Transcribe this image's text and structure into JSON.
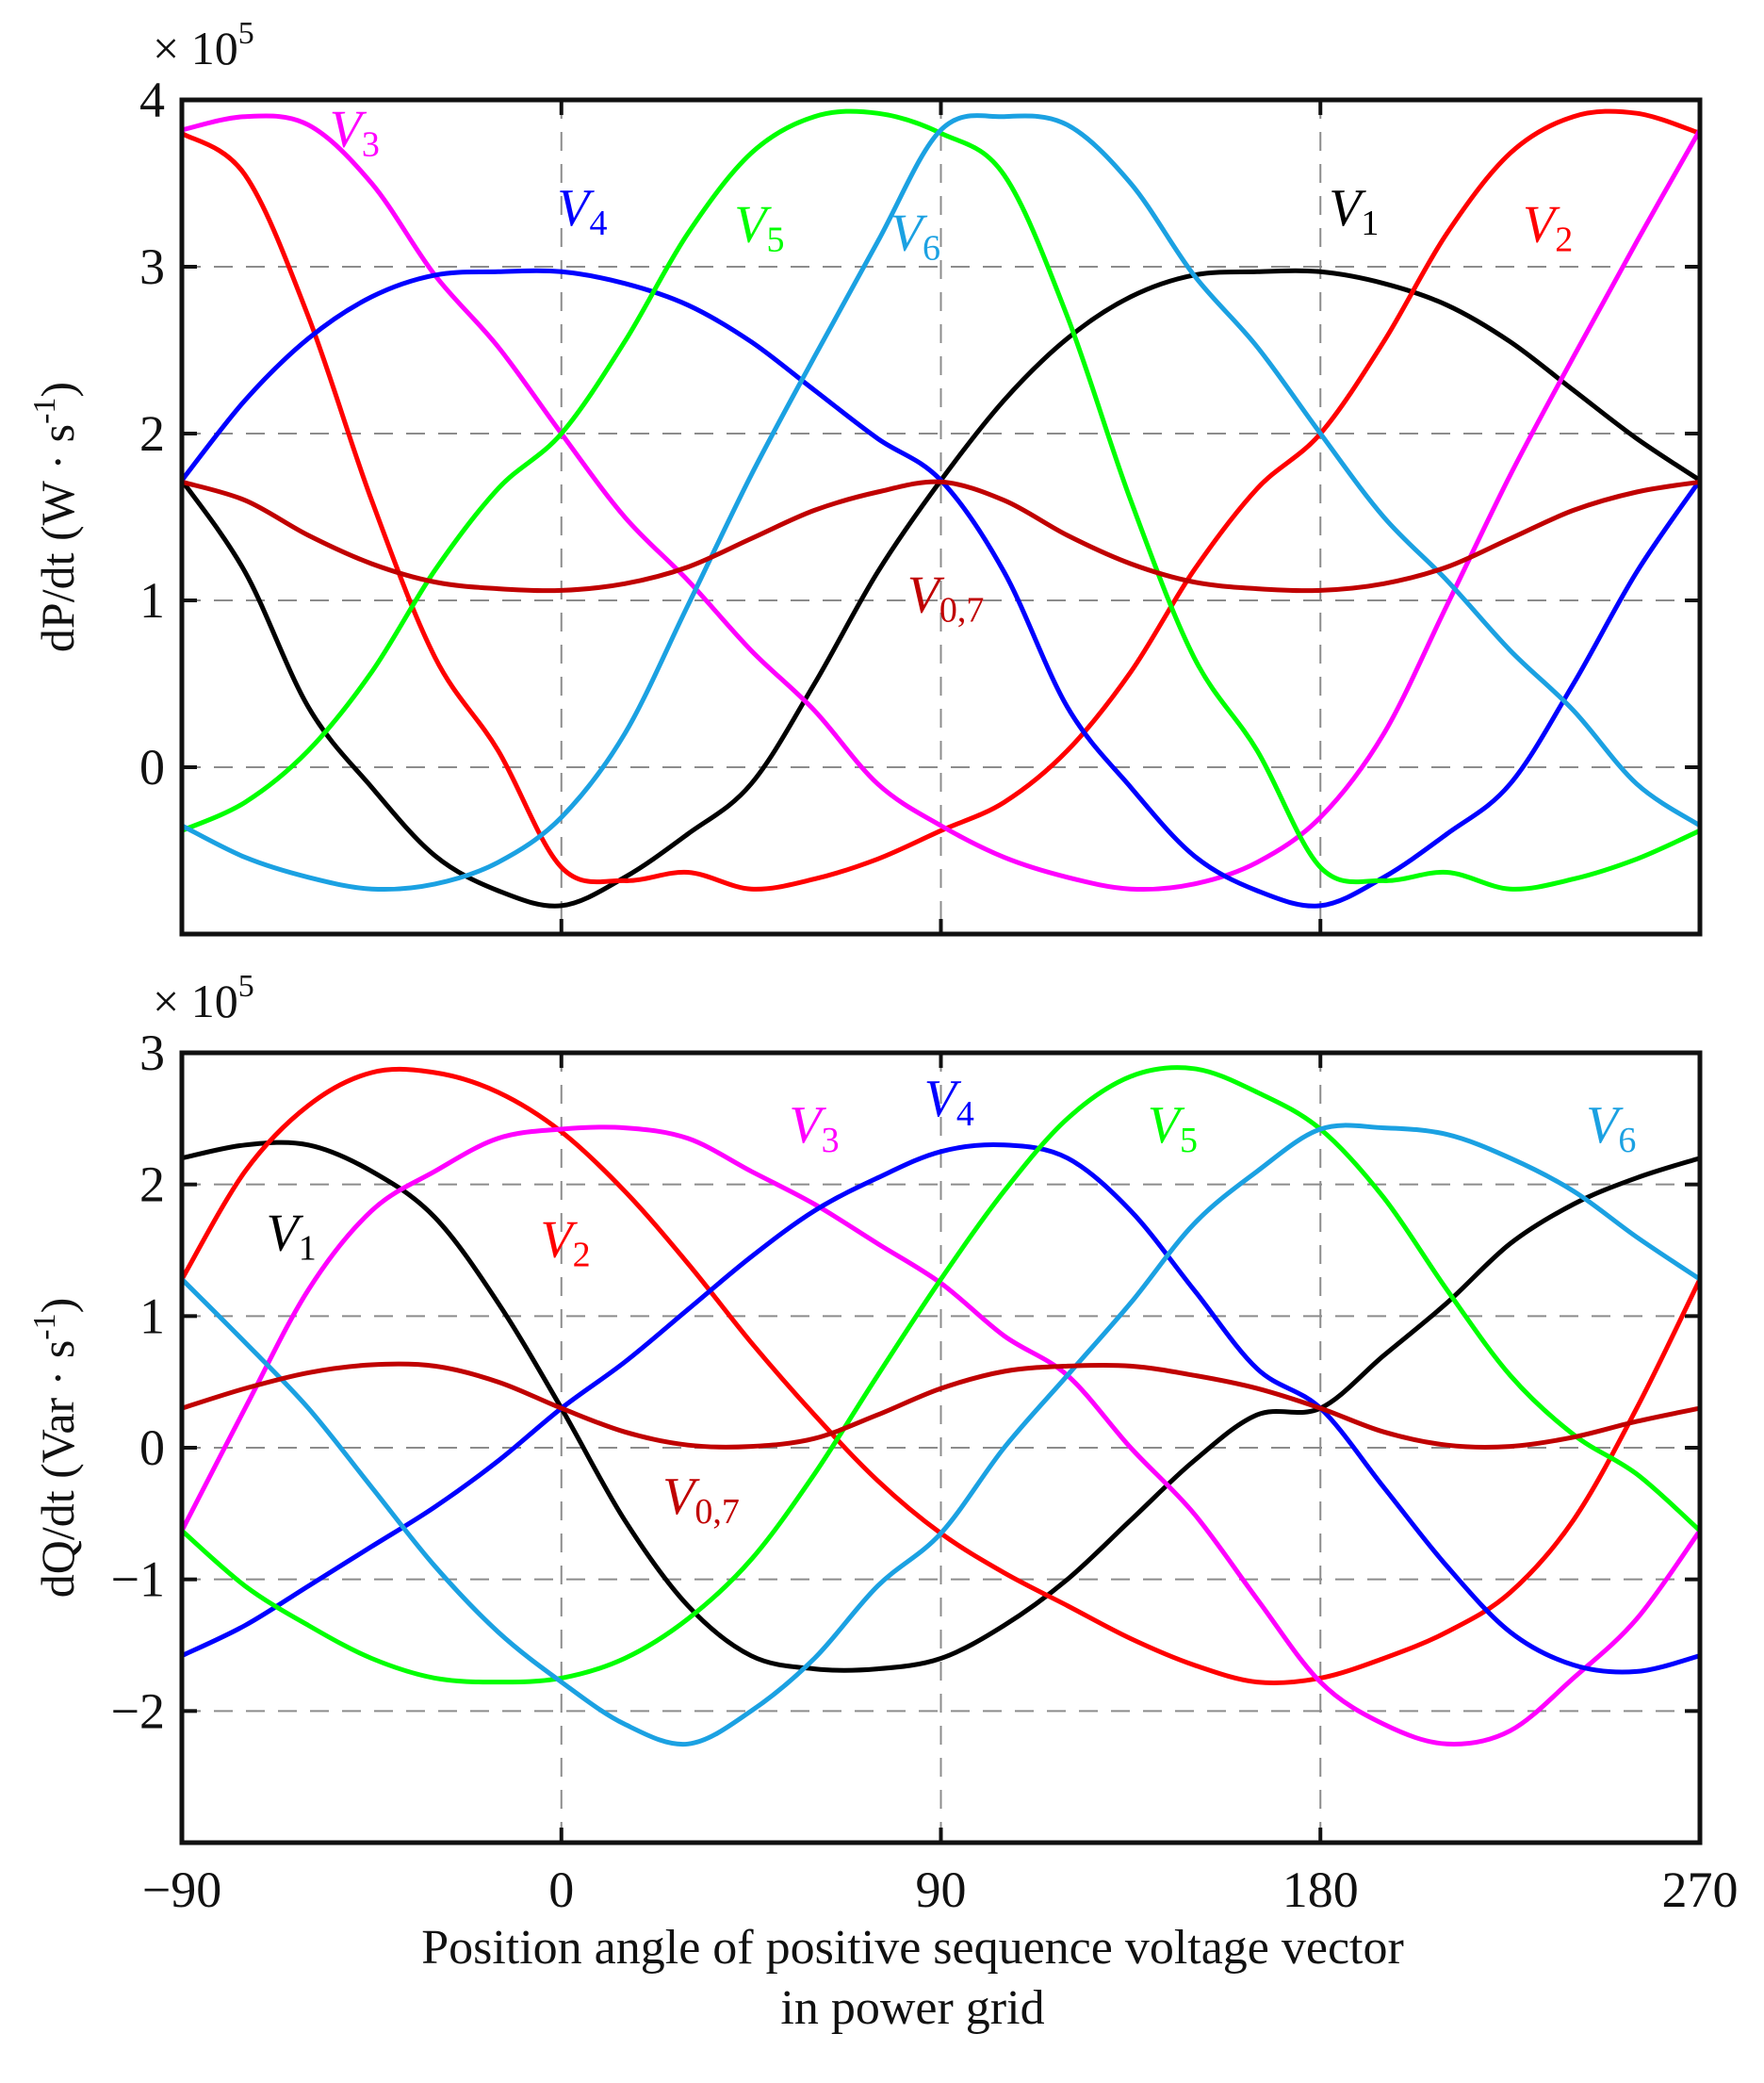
{
  "chart_data": [
    {
      "type": "line",
      "id": "dp",
      "ylabel": "dP/dt (W · s",
      "ylabel_sup": "-1",
      "ylabel_tail": ")",
      "scale_label": "× 10",
      "scale_exp": "5",
      "xlim": [
        -90,
        270
      ],
      "ylim": [
        -1,
        4
      ],
      "yticks": [
        0,
        1,
        2,
        3,
        4
      ],
      "ytick_labels": [
        "0",
        "1",
        "2",
        "3",
        "4"
      ],
      "xgrid": [
        0,
        90,
        180
      ],
      "ygrid": [
        0,
        1,
        2,
        3
      ],
      "series": [
        {
          "key": "V1",
          "color": "#000000",
          "label_main": "V",
          "label_sub": "1",
          "label_x": 182,
          "label_y": 3.25,
          "label_color": "#000000",
          "x": [
            -90,
            -75,
            -60,
            -45,
            -30,
            -15,
            0,
            15,
            30,
            45,
            60,
            75,
            90,
            105,
            120,
            135,
            150,
            165,
            180,
            195,
            210,
            225,
            240,
            255,
            270
          ],
          "y": [
            1.72,
            1.17,
            0.36,
            -0.12,
            -0.53,
            -0.74,
            -0.83,
            -0.66,
            -0.4,
            -0.1,
            0.5,
            1.17,
            1.72,
            2.2,
            2.57,
            2.82,
            2.95,
            2.97,
            2.97,
            2.9,
            2.77,
            2.55,
            2.26,
            1.97,
            1.72
          ]
        },
        {
          "key": "V2",
          "color": "#ff0000",
          "label_main": "V",
          "label_sub": "2",
          "label_x": 228,
          "label_y": 3.15,
          "label_color": "#ff0000",
          "x": [
            -90,
            -75,
            -60,
            -45,
            -30,
            -15,
            0,
            15,
            30,
            45,
            60,
            75,
            90,
            105,
            120,
            135,
            150,
            165,
            180,
            195,
            210,
            225,
            240,
            255,
            270
          ],
          "y": [
            3.8,
            3.55,
            2.7,
            1.6,
            0.66,
            0.1,
            -0.6,
            -0.68,
            -0.63,
            -0.73,
            -0.67,
            -0.55,
            -0.38,
            -0.21,
            0.1,
            0.57,
            1.18,
            1.67,
            2.0,
            2.55,
            3.2,
            3.68,
            3.9,
            3.92,
            3.8
          ]
        },
        {
          "key": "V3",
          "color": "#ff00ff",
          "label_main": "V",
          "label_sub": "3",
          "label_x": -55,
          "label_y": 3.72,
          "label_color": "#ff00ff",
          "x": [
            -90,
            -75,
            -60,
            -45,
            -30,
            -15,
            0,
            15,
            30,
            45,
            60,
            75,
            90,
            105,
            120,
            135,
            150,
            165,
            180,
            195,
            210,
            225,
            240,
            255,
            270
          ],
          "y": [
            3.82,
            3.9,
            3.85,
            3.5,
            2.95,
            2.52,
            2.0,
            1.5,
            1.12,
            0.7,
            0.34,
            -0.1,
            -0.35,
            -0.54,
            -0.66,
            -0.73,
            -0.7,
            -0.57,
            -0.3,
            0.2,
            0.97,
            1.75,
            2.46,
            3.15,
            3.82
          ]
        },
        {
          "key": "V4",
          "color": "#0000ff",
          "label_main": "V",
          "label_sub": "4",
          "label_x": -1,
          "label_y": 3.25,
          "label_color": "#0000ff",
          "x": [
            -90,
            -75,
            -60,
            -45,
            -30,
            -15,
            0,
            15,
            30,
            45,
            60,
            75,
            90,
            105,
            120,
            135,
            150,
            165,
            180,
            195,
            210,
            225,
            240,
            255,
            270
          ],
          "y": [
            1.72,
            2.2,
            2.57,
            2.82,
            2.95,
            2.97,
            2.97,
            2.9,
            2.77,
            2.55,
            2.26,
            1.97,
            1.72,
            1.17,
            0.36,
            -0.12,
            -0.53,
            -0.74,
            -0.83,
            -0.66,
            -0.4,
            -0.1,
            0.5,
            1.17,
            1.72
          ]
        },
        {
          "key": "V5",
          "color": "#00ff00",
          "label_main": "V",
          "label_sub": "5",
          "label_x": 41,
          "label_y": 3.15,
          "label_color": "#00ff00",
          "x": [
            -90,
            -75,
            -60,
            -45,
            -30,
            -15,
            0,
            15,
            30,
            45,
            60,
            75,
            90,
            105,
            120,
            135,
            150,
            165,
            180,
            195,
            210,
            225,
            240,
            255,
            270
          ],
          "y": [
            -0.38,
            -0.21,
            0.1,
            0.57,
            1.18,
            1.67,
            2.0,
            2.55,
            3.2,
            3.68,
            3.9,
            3.92,
            3.8,
            3.55,
            2.7,
            1.6,
            0.66,
            0.1,
            -0.6,
            -0.68,
            -0.63,
            -0.73,
            -0.67,
            -0.55,
            -0.38
          ]
        },
        {
          "key": "V6",
          "color": "#1ba1e2",
          "label_main": "V",
          "label_sub": "6",
          "label_x": 78,
          "label_y": 3.1,
          "label_color": "#1ba1e2",
          "x": [
            -90,
            -75,
            -60,
            -45,
            -30,
            -15,
            0,
            15,
            30,
            45,
            60,
            75,
            90,
            105,
            120,
            135,
            150,
            165,
            180,
            195,
            210,
            225,
            240,
            255,
            270
          ],
          "y": [
            -0.35,
            -0.54,
            -0.66,
            -0.73,
            -0.7,
            -0.57,
            -0.3,
            0.2,
            0.97,
            1.75,
            2.46,
            3.15,
            3.82,
            3.9,
            3.85,
            3.5,
            2.95,
            2.52,
            2.0,
            1.5,
            1.12,
            0.7,
            0.34,
            -0.1,
            -0.35
          ]
        },
        {
          "key": "V07",
          "color": "#c00000",
          "label_main": "V",
          "label_sub": "0,7",
          "label_x": 82,
          "label_y": 0.93,
          "label_color": "#c00000",
          "x": [
            -90,
            -75,
            -60,
            -45,
            -30,
            -15,
            0,
            15,
            30,
            45,
            60,
            75,
            90,
            105,
            120,
            135,
            150,
            165,
            180,
            195,
            210,
            225,
            240,
            255,
            270
          ],
          "y": [
            1.71,
            1.6,
            1.39,
            1.22,
            1.11,
            1.07,
            1.06,
            1.1,
            1.2,
            1.37,
            1.54,
            1.65,
            1.71,
            1.6,
            1.39,
            1.22,
            1.11,
            1.07,
            1.06,
            1.1,
            1.2,
            1.37,
            1.54,
            1.65,
            1.71
          ]
        }
      ]
    },
    {
      "type": "line",
      "id": "dq",
      "ylabel": "dQ/dt (Var · s",
      "ylabel_sup": "-1",
      "ylabel_tail": ")",
      "scale_label": "× 10",
      "scale_exp": "5",
      "xlabel_line1": "Position angle of positive sequence voltage vector",
      "xlabel_line2": "in power grid",
      "xlim": [
        -90,
        270
      ],
      "ylim": [
        -3,
        3
      ],
      "xticks": [
        -90,
        0,
        90,
        180,
        270
      ],
      "xtick_labels": [
        "−90",
        "0",
        "90",
        "180",
        "270"
      ],
      "yticks": [
        -2,
        -1,
        0,
        1,
        2,
        3
      ],
      "ytick_labels": [
        "−2",
        "−1",
        "0",
        "1",
        "2",
        "3"
      ],
      "xgrid": [
        0,
        90,
        180
      ],
      "ygrid": [
        -2,
        -1,
        0,
        1,
        2
      ],
      "series": [
        {
          "key": "V1",
          "color": "#000000",
          "label_main": "V",
          "label_sub": "1",
          "label_x": -70,
          "label_y": 1.5,
          "label_color": "#000000",
          "x": [
            -90,
            -75,
            -60,
            -45,
            -30,
            -15,
            0,
            15,
            30,
            45,
            60,
            75,
            90,
            105,
            120,
            135,
            150,
            165,
            180,
            195,
            210,
            225,
            240,
            255,
            270
          ],
          "y": [
            2.2,
            2.3,
            2.3,
            2.1,
            1.75,
            1.1,
            0.3,
            -0.55,
            -1.2,
            -1.58,
            -1.68,
            -1.68,
            -1.6,
            -1.35,
            -1.0,
            -0.55,
            -0.1,
            0.25,
            0.3,
            0.7,
            1.1,
            1.55,
            1.85,
            2.05,
            2.2
          ]
        },
        {
          "key": "V2",
          "color": "#ff0000",
          "label_main": "V",
          "label_sub": "2",
          "label_x": -5,
          "label_y": 1.45,
          "label_color": "#ff0000",
          "x": [
            -90,
            -75,
            -60,
            -45,
            -30,
            -15,
            0,
            15,
            30,
            45,
            60,
            75,
            90,
            105,
            120,
            135,
            150,
            165,
            180,
            195,
            210,
            225,
            240,
            255,
            270
          ],
          "y": [
            1.28,
            2.1,
            2.6,
            2.85,
            2.85,
            2.7,
            2.4,
            1.95,
            1.4,
            0.8,
            0.25,
            -0.25,
            -0.65,
            -0.95,
            -1.2,
            -1.45,
            -1.65,
            -1.78,
            -1.75,
            -1.6,
            -1.4,
            -1.1,
            -0.55,
            0.3,
            1.28
          ]
        },
        {
          "key": "V3",
          "color": "#ff00ff",
          "label_main": "V",
          "label_sub": "3",
          "label_x": 54,
          "label_y": 2.32,
          "label_color": "#ff00ff",
          "x": [
            -90,
            -75,
            -60,
            -45,
            -30,
            -15,
            0,
            15,
            30,
            45,
            60,
            75,
            90,
            105,
            120,
            135,
            150,
            165,
            180,
            195,
            210,
            225,
            240,
            255,
            270
          ],
          "y": [
            -0.63,
            0.3,
            1.2,
            1.8,
            2.1,
            2.35,
            2.42,
            2.43,
            2.35,
            2.1,
            1.85,
            1.55,
            1.25,
            0.85,
            0.55,
            0.0,
            -0.5,
            -1.15,
            -1.78,
            -2.1,
            -2.25,
            -2.15,
            -1.75,
            -1.3,
            -0.63
          ]
        },
        {
          "key": "V4",
          "color": "#0000ff",
          "label_main": "V",
          "label_sub": "4",
          "label_x": 86,
          "label_y": 2.52,
          "label_color": "#0000ff",
          "x": [
            -90,
            -75,
            -60,
            -45,
            -30,
            -15,
            0,
            15,
            30,
            45,
            60,
            75,
            90,
            105,
            120,
            135,
            150,
            165,
            180,
            195,
            210,
            225,
            240,
            255,
            270
          ],
          "y": [
            -1.58,
            -1.35,
            -1.05,
            -0.75,
            -0.45,
            -0.1,
            0.3,
            0.65,
            1.05,
            1.45,
            1.8,
            2.05,
            2.25,
            2.3,
            2.2,
            1.8,
            1.2,
            0.6,
            0.3,
            -0.3,
            -0.9,
            -1.4,
            -1.65,
            -1.7,
            -1.58
          ]
        },
        {
          "key": "V5",
          "color": "#00ff00",
          "label_main": "V",
          "label_sub": "5",
          "label_x": 139,
          "label_y": 2.32,
          "label_color": "#00ff00",
          "x": [
            -90,
            -75,
            -60,
            -45,
            -30,
            -15,
            0,
            15,
            30,
            45,
            60,
            75,
            90,
            105,
            120,
            135,
            150,
            165,
            180,
            195,
            210,
            225,
            240,
            255,
            270
          ],
          "y": [
            -0.63,
            -1.05,
            -1.35,
            -1.6,
            -1.75,
            -1.78,
            -1.75,
            -1.6,
            -1.3,
            -0.85,
            -0.2,
            0.55,
            1.28,
            1.95,
            2.5,
            2.82,
            2.88,
            2.7,
            2.42,
            1.9,
            1.2,
            0.55,
            0.1,
            -0.2,
            -0.63
          ]
        },
        {
          "key": "V6",
          "color": "#1ba1e2",
          "label_main": "V",
          "label_sub": "6",
          "label_x": 243,
          "label_y": 2.32,
          "label_color": "#1ba1e2",
          "x": [
            -90,
            -75,
            -60,
            -45,
            -30,
            -15,
            0,
            15,
            30,
            45,
            60,
            75,
            90,
            105,
            120,
            135,
            150,
            165,
            180,
            195,
            210,
            225,
            240,
            255,
            270
          ],
          "y": [
            1.28,
            0.8,
            0.3,
            -0.3,
            -0.9,
            -1.4,
            -1.78,
            -2.1,
            -2.25,
            -2.0,
            -1.6,
            -1.05,
            -0.65,
            0.0,
            0.55,
            1.1,
            1.7,
            2.1,
            2.42,
            2.43,
            2.38,
            2.2,
            1.95,
            1.6,
            1.28
          ]
        },
        {
          "key": "V07",
          "color": "#c00000",
          "label_main": "V",
          "label_sub": "0,7",
          "label_x": 24,
          "label_y": -0.5,
          "label_color": "#c00000",
          "x": [
            -90,
            -75,
            -60,
            -45,
            -30,
            -15,
            0,
            15,
            30,
            45,
            60,
            75,
            90,
            105,
            120,
            135,
            150,
            165,
            180,
            195,
            210,
            225,
            240,
            255,
            270
          ],
          "y": [
            0.3,
            0.45,
            0.57,
            0.63,
            0.62,
            0.5,
            0.3,
            0.12,
            0.02,
            0.01,
            0.07,
            0.25,
            0.45,
            0.58,
            0.62,
            0.62,
            0.55,
            0.45,
            0.3,
            0.12,
            0.02,
            0.01,
            0.08,
            0.2,
            0.3
          ]
        }
      ]
    }
  ]
}
